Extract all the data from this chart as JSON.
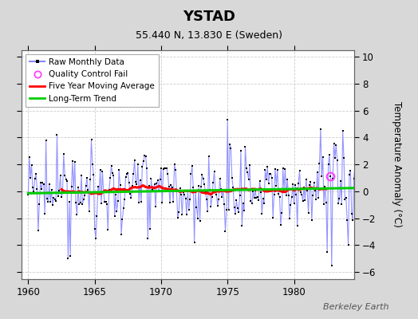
{
  "title": "YSTAD",
  "subtitle": "55.440 N, 13.830 E (Sweden)",
  "ylabel": "Temperature Anomaly (°C)",
  "watermark": "Berkeley Earth",
  "xlim": [
    1959.5,
    1984.5
  ],
  "ylim": [
    -6.5,
    10.5
  ],
  "yticks": [
    -6,
    -4,
    -2,
    0,
    2,
    4,
    6,
    8,
    10
  ],
  "xticks": [
    1960,
    1965,
    1970,
    1975,
    1980
  ],
  "fig_bg_color": "#d8d8d8",
  "plot_bg_color": "#ffffff",
  "raw_line_color": "#8888ff",
  "raw_dot_color": "#000000",
  "ma_color": "#ff0000",
  "trend_color": "#00cc00",
  "qc_color": "#ff44ff",
  "grid_color": "#cccccc",
  "title_fontsize": 13,
  "subtitle_fontsize": 9,
  "tick_fontsize": 8.5,
  "ylabel_fontsize": 8.5,
  "legend_fontsize": 7.5,
  "watermark_fontsize": 8
}
